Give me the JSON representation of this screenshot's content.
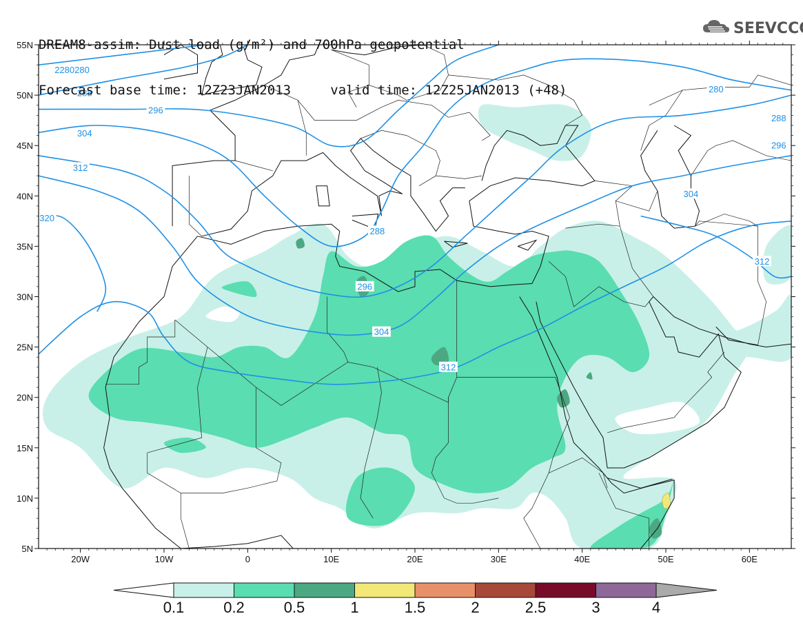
{
  "header": {
    "title_line1": "DREAM8-assim: Dust load (g/m²) and 700hPa geopotential",
    "title_line2_base_label": "Forecast base time: 12Z23JAN2013",
    "title_line2_valid_label": "valid time: 12Z25JAN2013 (+48)"
  },
  "logo": {
    "text": "SEEVCCC",
    "icon": "cloud-logo-icon"
  },
  "map": {
    "lat_ticks": [
      "55N",
      "50N",
      "45N",
      "40N",
      "35N",
      "30N",
      "25N",
      "20N",
      "15N",
      "10N",
      "5N"
    ],
    "lon_ticks": [
      "20W",
      "10W",
      "0",
      "10E",
      "20E",
      "30E",
      "40E",
      "50E",
      "60E"
    ],
    "lon_range": [
      -25,
      65
    ],
    "lat_range": [
      5,
      55
    ],
    "colors": {
      "light_dust": "#C8F0E8",
      "medium_dust": "#5ADDB0",
      "heavy_dust": "#4CA882",
      "yellow_dust": "#F2E878",
      "contour": "#1E90E6",
      "coast": "#111111"
    },
    "contour_labels": [
      "280",
      "288",
      "296",
      "304",
      "312",
      "320"
    ]
  },
  "colorbar": {
    "colors": [
      "#C8F0E8",
      "#5ADDB0",
      "#4CA882",
      "#F2E878",
      "#E89068",
      "#A84838",
      "#780C28",
      "#8E6898",
      "#AAAAAA"
    ],
    "labels": [
      "0.1",
      "0.2",
      "0.5",
      "1",
      "1.5",
      "2",
      "2.5",
      "3",
      "4"
    ]
  }
}
